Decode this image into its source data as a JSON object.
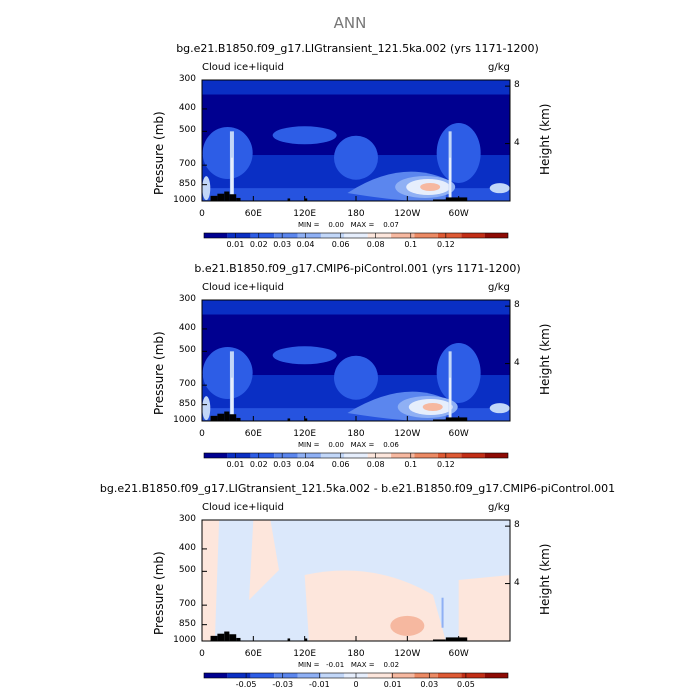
{
  "title": "ANN",
  "panels": [
    {
      "id": "p1",
      "title": "bg.e21.B1850.f09_g17.LIGtransient_121.5ka.002 (yrs 1171-1200)",
      "variable": "Cloud ice+liquid",
      "units": "g/kg",
      "min_label": "MIN =    0.00   MAX =    0.07",
      "colorbar_ticks": [
        "0.01",
        "0.02",
        "0.03",
        "0.04",
        "0.06",
        "0.08",
        "0.1",
        "0.12"
      ],
      "palette": "seq"
    },
    {
      "id": "p2",
      "title": "b.e21.B1850.f09_g17.CMIP6-piControl.001 (yrs 1171-1200)",
      "variable": "Cloud ice+liquid",
      "units": "g/kg",
      "min_label": "MIN =    0.00   MAX =    0.06",
      "colorbar_ticks": [
        "0.01",
        "0.02",
        "0.03",
        "0.04",
        "0.06",
        "0.08",
        "0.1",
        "0.12"
      ],
      "palette": "seq"
    },
    {
      "id": "p3",
      "title": "bg.e21.B1850.f09_g17.LIGtransient_121.5ka.002 - b.e21.B1850.f09_g17.CMIP6-piControl.001",
      "variable": "Cloud ice+liquid",
      "units": "g/kg",
      "min_label": "MIN =   -0.01   MAX =    0.02",
      "colorbar_ticks": [
        "-0.05",
        "-0.03",
        "-0.01",
        "0",
        "0.01",
        "0.03",
        "0.05"
      ],
      "palette": "div"
    }
  ],
  "axes": {
    "ylabel": "Pressure (mb)",
    "ylabel_right": "Height (km)",
    "yticks": [
      "300",
      "400",
      "500",
      "700",
      "850",
      "1000"
    ],
    "ytick_values": [
      300,
      400,
      500,
      700,
      850,
      1000
    ],
    "yticks_right": [
      "8",
      "4"
    ],
    "xticks": [
      "0",
      "60E",
      "120E",
      "180",
      "120W",
      "60W"
    ],
    "xtick_values": [
      0,
      60,
      120,
      180,
      240,
      300
    ],
    "xlim": [
      0,
      360
    ],
    "ylim": [
      1000,
      300
    ]
  },
  "chart_data": [
    {
      "type": "heatmap",
      "title": "bg.e21.B1850.f09_g17.LIGtransient_121.5ka.002 (yrs 1171-1200)",
      "xlabel": "",
      "ylabel": "Pressure (mb)",
      "x_range": [
        0,
        360
      ],
      "y_range": [
        1000,
        300
      ],
      "min": 0.0,
      "max": 0.07,
      "colorbar_levels": [
        0.01,
        0.02,
        0.03,
        0.04,
        0.06,
        0.08,
        0.1,
        0.12
      ],
      "features": [
        {
          "lon": 255,
          "p": 870,
          "value": 0.07
        },
        {
          "lon": 290,
          "p": 840,
          "value": 0.05
        },
        {
          "lon": 35,
          "p": 720,
          "value": 0.04
        },
        {
          "lon": 5,
          "p": 880,
          "value": 0.04
        },
        {
          "lon": 120,
          "p": 520,
          "value": 0.02
        }
      ]
    },
    {
      "type": "heatmap",
      "title": "b.e21.B1850.f09_g17.CMIP6-piControl.001 (yrs 1171-1200)",
      "xlabel": "",
      "ylabel": "Pressure (mb)",
      "x_range": [
        0,
        360
      ],
      "y_range": [
        1000,
        300
      ],
      "min": 0.0,
      "max": 0.06,
      "colorbar_levels": [
        0.01,
        0.02,
        0.03,
        0.04,
        0.06,
        0.08,
        0.1,
        0.12
      ],
      "features": [
        {
          "lon": 260,
          "p": 870,
          "value": 0.06
        },
        {
          "lon": 290,
          "p": 840,
          "value": 0.05
        },
        {
          "lon": 35,
          "p": 720,
          "value": 0.04
        },
        {
          "lon": 5,
          "p": 880,
          "value": 0.04
        },
        {
          "lon": 120,
          "p": 520,
          "value": 0.02
        }
      ]
    },
    {
      "type": "heatmap",
      "title": "bg.e21.B1850.f09_g17.LIGtransient_121.5ka.002 - b.e21.B1850.f09_g17.CMIP6-piControl.001",
      "xlabel": "",
      "ylabel": "Pressure (mb)",
      "x_range": [
        0,
        360
      ],
      "y_range": [
        1000,
        300
      ],
      "min": -0.01,
      "max": 0.02,
      "colorbar_levels": [
        -0.05,
        -0.03,
        -0.01,
        0,
        0.01,
        0.03,
        0.05
      ],
      "features": [
        {
          "lon": 240,
          "p": 860,
          "value": 0.02
        },
        {
          "lon": 60,
          "p": 600,
          "value": 0.005
        },
        {
          "lon": 290,
          "p": 700,
          "value": -0.005
        }
      ]
    }
  ],
  "colors": {
    "seq": [
      "#000090",
      "#0a2fc4",
      "#2d5de6",
      "#5b86ee",
      "#8fb0f4",
      "#c2d7f8",
      "#e6eefc",
      "#fde6dc",
      "#f6b8a0",
      "#ec8a64",
      "#de5a34",
      "#c22e16",
      "#8e0a04"
    ],
    "div": [
      "#000090",
      "#0a2fc4",
      "#2d5de6",
      "#5b86ee",
      "#8fb0f4",
      "#c2d7f8",
      "#e6eefc",
      "#fde6dc",
      "#f6b8a0",
      "#ec8a64",
      "#de5a34",
      "#c22e16",
      "#8e0a04"
    ]
  }
}
